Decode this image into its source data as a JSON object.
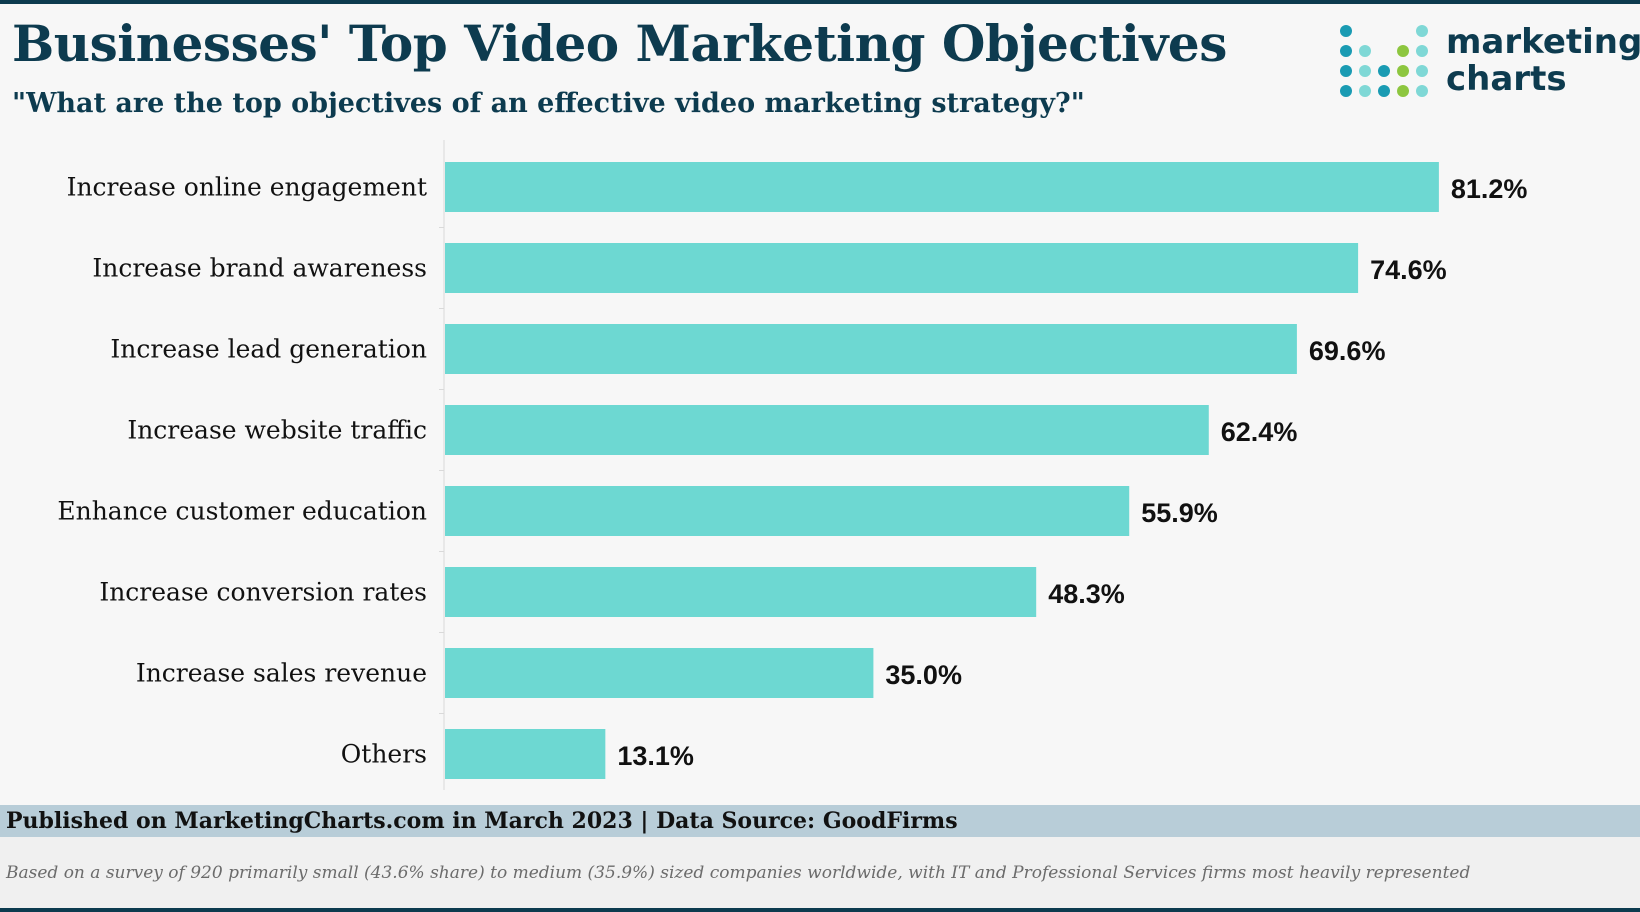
{
  "header": {
    "title": "Businesses' Top Video Marketing Objectives",
    "subtitle": "\"What are the top objectives of an effective video marketing strategy?\""
  },
  "logo": {
    "line1": "marketing",
    "line2": "charts"
  },
  "colors": {
    "bar": "#6dd8d2",
    "title": "#0d3b4f",
    "dot_dark": "#1a9bb3",
    "dot_light": "#7fd8d6",
    "dot_green": "#8dc63f"
  },
  "chart_data": {
    "type": "bar",
    "orientation": "horizontal",
    "categories": [
      "Increase online engagement",
      "Increase brand awareness",
      "Increase lead generation",
      "Increase website traffic",
      "Enhance customer education",
      "Increase conversion rates",
      "Increase sales revenue",
      "Others"
    ],
    "values": [
      81.2,
      74.6,
      69.6,
      62.4,
      55.9,
      48.3,
      35.0,
      13.1
    ],
    "labels": [
      "81.2%",
      "74.6%",
      "69.6%",
      "62.4%",
      "55.9%",
      "48.3%",
      "35.0%",
      "13.1%"
    ],
    "xlim": [
      0,
      100
    ],
    "grid": false,
    "legend": "none"
  },
  "footer": {
    "source": "Published on MarketingCharts.com in March 2023 | Data Source: GoodFirms",
    "note": "Based on a survey of 920 primarily small (43.6% share) to medium (35.9%) sized companies worldwide, with IT and Professional Services firms most heavily represented"
  }
}
